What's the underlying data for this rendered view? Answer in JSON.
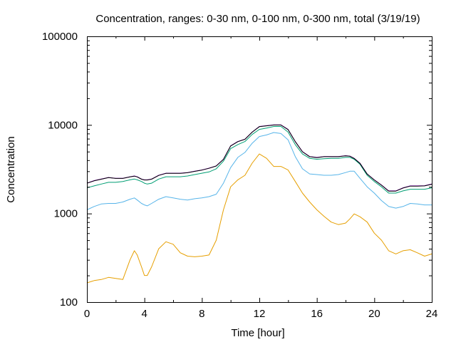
{
  "chart_data": {
    "type": "line",
    "title": "Concentration, ranges: 0-30 nm, 0-100 nm, 0-300 nm, total (3/19/19)",
    "xlabel": "Time [hour]",
    "ylabel": "Concentration",
    "xlim": [
      0,
      24
    ],
    "ylim": [
      100,
      100000
    ],
    "yscale": "log",
    "grid": false,
    "legend": "none",
    "x_ticks": [
      0,
      4,
      8,
      12,
      16,
      20,
      24
    ],
    "x_tick_labels": [
      "0",
      "4",
      "8",
      "12",
      "16",
      "20",
      "24"
    ],
    "y_ticks": [
      100,
      1000,
      10000,
      100000
    ],
    "y_tick_labels": [
      "100",
      "1000",
      "10000",
      "100000"
    ],
    "x": [
      0,
      0.5,
      1,
      1.5,
      2,
      2.5,
      3,
      3.3,
      3.5,
      3.8,
      4,
      4.2,
      4.5,
      5,
      5.5,
      6,
      6.5,
      7,
      7.5,
      8,
      8.5,
      9,
      9.5,
      10,
      10.5,
      11,
      11.5,
      12,
      12.5,
      13,
      13.5,
      14,
      14.5,
      15,
      15.5,
      16,
      16.5,
      17,
      17.5,
      18,
      18.3,
      18.6,
      19,
      19.5,
      20,
      20.5,
      21,
      21.5,
      22,
      22.5,
      23,
      23.5,
      24
    ],
    "series": [
      {
        "color": "#e69f00",
        "values": [
          165,
          175,
          180,
          190,
          185,
          180,
          300,
          380,
          340,
          250,
          200,
          200,
          250,
          400,
          480,
          450,
          360,
          330,
          325,
          330,
          340,
          500,
          1100,
          2000,
          2400,
          2700,
          3700,
          4700,
          4200,
          3400,
          3400,
          3100,
          2300,
          1700,
          1350,
          1100,
          930,
          800,
          750,
          780,
          870,
          990,
          920,
          800,
          600,
          500,
          380,
          350,
          380,
          390,
          360,
          330,
          350
        ]
      },
      {
        "color": "#56b4e9",
        "values": [
          1100,
          1200,
          1280,
          1300,
          1300,
          1350,
          1450,
          1500,
          1420,
          1300,
          1250,
          1220,
          1300,
          1450,
          1550,
          1500,
          1450,
          1420,
          1470,
          1500,
          1550,
          1650,
          2200,
          3300,
          4300,
          4900,
          6200,
          7400,
          7700,
          8200,
          8000,
          6800,
          4400,
          3200,
          2800,
          2750,
          2700,
          2700,
          2750,
          2900,
          3000,
          3000,
          2500,
          2000,
          1700,
          1400,
          1200,
          1150,
          1200,
          1300,
          1280,
          1250,
          1250
        ]
      },
      {
        "color": "#009e73",
        "values": [
          1950,
          2050,
          2150,
          2250,
          2250,
          2300,
          2400,
          2450,
          2400,
          2300,
          2200,
          2150,
          2200,
          2450,
          2600,
          2600,
          2600,
          2650,
          2750,
          2850,
          2950,
          3200,
          3900,
          5400,
          6000,
          6500,
          7800,
          8900,
          9200,
          9600,
          9600,
          8300,
          6000,
          4700,
          4200,
          4100,
          4150,
          4200,
          4200,
          4300,
          4300,
          4100,
          3600,
          2700,
          2300,
          2000,
          1700,
          1700,
          1800,
          1880,
          1880,
          1880,
          1950
        ]
      },
      {
        "color": "#9400d3",
        "values": [
          2200,
          2350,
          2450,
          2550,
          2500,
          2500,
          2600,
          2650,
          2600,
          2450,
          2400,
          2400,
          2450,
          2700,
          2850,
          2850,
          2850,
          2900,
          3000,
          3100,
          3250,
          3450,
          4100,
          5800,
          6500,
          6900,
          8300,
          9600,
          9800,
          10000,
          10000,
          8900,
          6500,
          5000,
          4400,
          4300,
          4400,
          4400,
          4400,
          4500,
          4450,
          4200,
          3700,
          2800,
          2400,
          2100,
          1800,
          1800,
          1950,
          2050,
          2050,
          2060,
          2150
        ]
      },
      {
        "color": "#000000",
        "values": [
          2200,
          2340,
          2440,
          2540,
          2490,
          2490,
          2590,
          2640,
          2590,
          2440,
          2390,
          2390,
          2440,
          2690,
          2840,
          2840,
          2840,
          2890,
          2990,
          3090,
          3240,
          3440,
          4080,
          5780,
          6480,
          6880,
          8280,
          9560,
          9760,
          9960,
          9960,
          8860,
          6470,
          4980,
          4380,
          4280,
          4380,
          4380,
          4380,
          4480,
          4430,
          4180,
          3680,
          2790,
          2390,
          2090,
          1790,
          1790,
          1940,
          2040,
          2040,
          2050,
          2140
        ]
      }
    ]
  }
}
